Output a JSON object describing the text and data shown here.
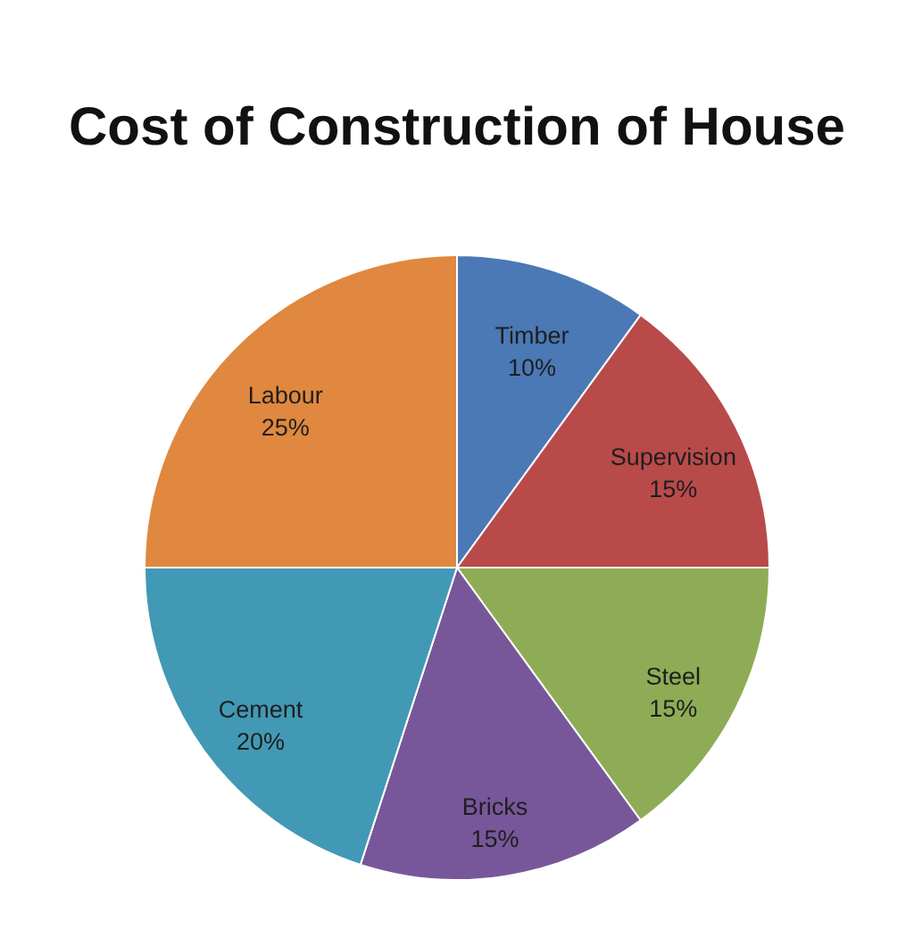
{
  "chart_data": {
    "type": "pie",
    "title": "Cost of Construction of House",
    "categories": [
      "Timber",
      "Supervision",
      "Steel",
      "Bricks",
      "Cement",
      "Labour"
    ],
    "values": [
      10,
      15,
      15,
      15,
      20,
      25
    ],
    "colors": [
      "#4a79b5",
      "#b94a4a",
      "#8eac55",
      "#77579a",
      "#4299b5",
      "#e0883f"
    ],
    "value_labels": [
      "10%",
      "15%",
      "15%",
      "15%",
      "20%",
      "25%"
    ]
  }
}
